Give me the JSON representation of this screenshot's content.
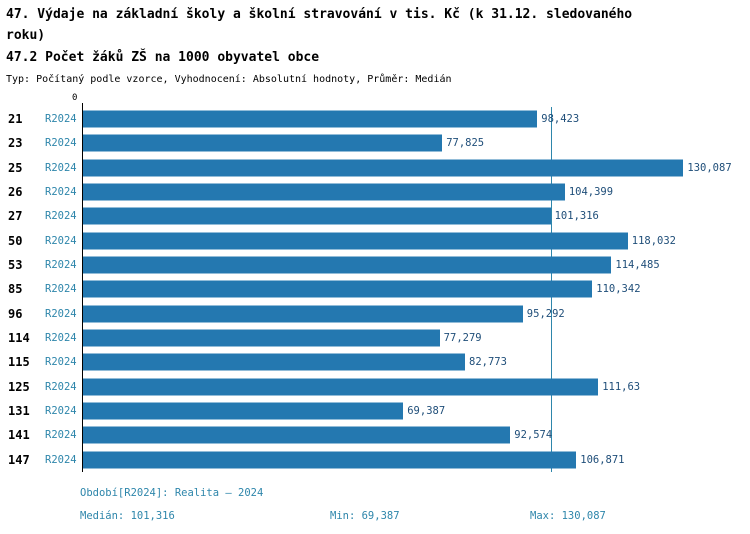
{
  "header": {
    "title": "47. Výdaje na základní školy a školní stravování v tis. Kč (k 31.12. sledovaného roku)",
    "subtitle": "47.2 Počet žáků ZŠ na 1000 obyvatel obce",
    "meta": "Typ: Počítaný podle vzorce, Vyhodnocení: Absolutní hodnoty, Průměr: Medián"
  },
  "chart_data": {
    "type": "bar",
    "orientation": "horizontal",
    "title": "47.2 Počet žáků ZŠ na 1000 obyvatel obce",
    "categories": [
      "21",
      "23",
      "25",
      "26",
      "27",
      "50",
      "53",
      "85",
      "96",
      "114",
      "115",
      "125",
      "131",
      "141",
      "147"
    ],
    "series_label": "R2024",
    "values": [
      98.423,
      77.825,
      130.087,
      104.399,
      101.316,
      118.032,
      114.485,
      110.342,
      95.292,
      77.279,
      82.773,
      111.63,
      69.387,
      92.574,
      106.871
    ],
    "value_labels": [
      "98,423",
      "77,825",
      "130,087",
      "104,399",
      "101,316",
      "118,032",
      "114,485",
      "110,342",
      "95,292",
      "77,279",
      "82,773",
      "111,63",
      "69,387",
      "92,574",
      "106,871"
    ],
    "axis_zero_label": "0",
    "xlim": [
      0,
      143
    ],
    "grid": false,
    "legend": "none",
    "median_value": 101.316,
    "median_line": true,
    "bar_color": "#2478b0",
    "median_line_color": "#2e86ab",
    "value_label_color": "#1f4e79",
    "series_label_color": "#2e86ab"
  },
  "footer": {
    "period": "Období[R2024]: Realita – 2024",
    "median": "Medián: 101,316",
    "min": "Min: 69,387",
    "max": "Max: 130,087"
  }
}
